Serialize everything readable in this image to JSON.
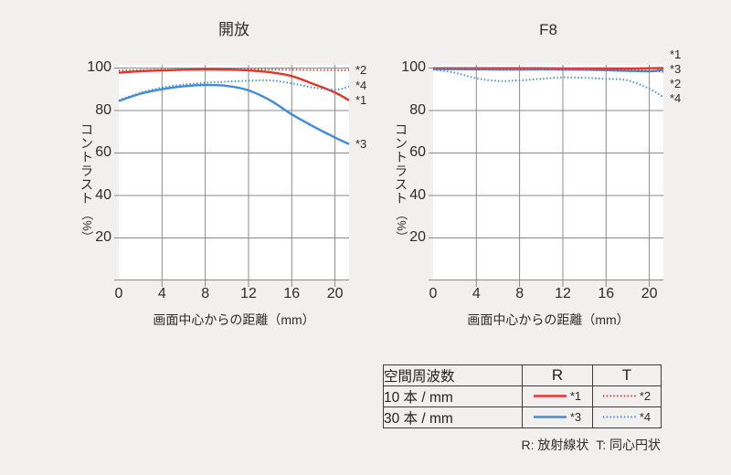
{
  "colors": {
    "page_bg": "#f1f0ee",
    "plot_bg": "#ffffff",
    "grid": "#8a8a8a",
    "text": "#2b2b2b",
    "red_line": "#e73328",
    "blue_line": "#3f8cdb",
    "table_border": "#3b3b3b"
  },
  "chart_data": [
    {
      "type": "line",
      "title": "開放",
      "xlabel": "画面中心からの距離（mm）",
      "ylabel": "コントラスト（%）",
      "xlim": [
        0,
        21.3
      ],
      "ylim": [
        0,
        101.5
      ],
      "xticks": [
        0,
        4,
        8,
        12,
        16,
        20
      ],
      "yticks": [
        100,
        80,
        60,
        40,
        20
      ],
      "grid": true,
      "x": [
        0,
        2,
        4,
        6,
        8,
        10,
        12,
        14,
        16,
        18,
        20,
        21.3
      ],
      "series": [
        {
          "name": "R 10本/mm",
          "label": "*1",
          "color": "red",
          "dash": "solid",
          "values": [
            97.8,
            98.5,
            98.9,
            99.2,
            99.4,
            99.3,
            98.9,
            98.0,
            96.2,
            92.5,
            88.5,
            84.8
          ]
        },
        {
          "name": "T 10本/mm",
          "label": "*2",
          "color": "red",
          "dash": "dotted",
          "values": [
            98.8,
            99.0,
            99.2,
            99.3,
            99.4,
            99.4,
            99.4,
            99.3,
            99.2,
            99.1,
            99.0,
            99.0
          ]
        },
        {
          "name": "R 30本/mm",
          "label": "*3",
          "color": "blue",
          "dash": "solid",
          "values": [
            84.5,
            87.9,
            90.0,
            91.4,
            92.0,
            91.6,
            89.5,
            84.8,
            78.2,
            72.5,
            67.3,
            64.2
          ]
        },
        {
          "name": "T 30本/mm",
          "label": "*4",
          "color": "blue",
          "dash": "dotted",
          "values": [
            84.8,
            88.3,
            90.8,
            92.2,
            93.0,
            93.6,
            94.0,
            94.2,
            92.8,
            90.8,
            89.8,
            91.3
          ]
        }
      ]
    },
    {
      "type": "line",
      "title": "F8",
      "xlabel": "画面中心からの距離（mm）",
      "ylabel": "コントラスト（%）",
      "xlim": [
        0,
        21.3
      ],
      "ylim": [
        0,
        101.5
      ],
      "xticks": [
        0,
        4,
        8,
        12,
        16,
        20
      ],
      "yticks": [
        100,
        80,
        60,
        40,
        20
      ],
      "grid": true,
      "x": [
        0,
        2,
        4,
        6,
        8,
        10,
        12,
        14,
        16,
        18,
        20,
        21.3
      ],
      "series": [
        {
          "name": "R 10本/mm",
          "label": "*1",
          "color": "red",
          "dash": "solid",
          "values": [
            99.9,
            99.9,
            99.9,
            99.9,
            99.9,
            99.9,
            99.8,
            99.8,
            99.8,
            99.8,
            99.9,
            100.0
          ]
        },
        {
          "name": "T 10本/mm",
          "label": "*2",
          "color": "red",
          "dash": "dotted",
          "values": [
            99.6,
            99.6,
            99.5,
            99.5,
            99.5,
            99.5,
            99.4,
            99.4,
            99.3,
            99.1,
            98.8,
            98.2
          ]
        },
        {
          "name": "R 30本/mm",
          "label": "*3",
          "color": "blue",
          "dash": "solid",
          "values": [
            99.5,
            99.5,
            99.4,
            99.3,
            99.3,
            99.4,
            99.3,
            99.2,
            99.0,
            98.7,
            98.5,
            99.1
          ]
        },
        {
          "name": "T 30本/mm",
          "label": "*4",
          "color": "blue",
          "dash": "dotted",
          "values": [
            99.3,
            97.8,
            95.2,
            93.9,
            94.2,
            94.9,
            95.6,
            95.4,
            94.9,
            94.2,
            90.3,
            86.3
          ]
        }
      ]
    }
  ],
  "legend_table": {
    "headers": [
      "空間周波数",
      "R",
      "T"
    ],
    "rows": [
      {
        "label": "10 本 / mm",
        "r": {
          "label": "*1",
          "color": "red",
          "dash": "solid"
        },
        "t": {
          "label": "*2",
          "color": "red",
          "dash": "dotted"
        }
      },
      {
        "label": "30 本 / mm",
        "r": {
          "label": "*3",
          "color": "blue",
          "dash": "solid"
        },
        "t": {
          "label": "*4",
          "color": "blue",
          "dash": "dotted"
        }
      }
    ],
    "footnote": "R: 放射線状  T: 同心円状"
  }
}
